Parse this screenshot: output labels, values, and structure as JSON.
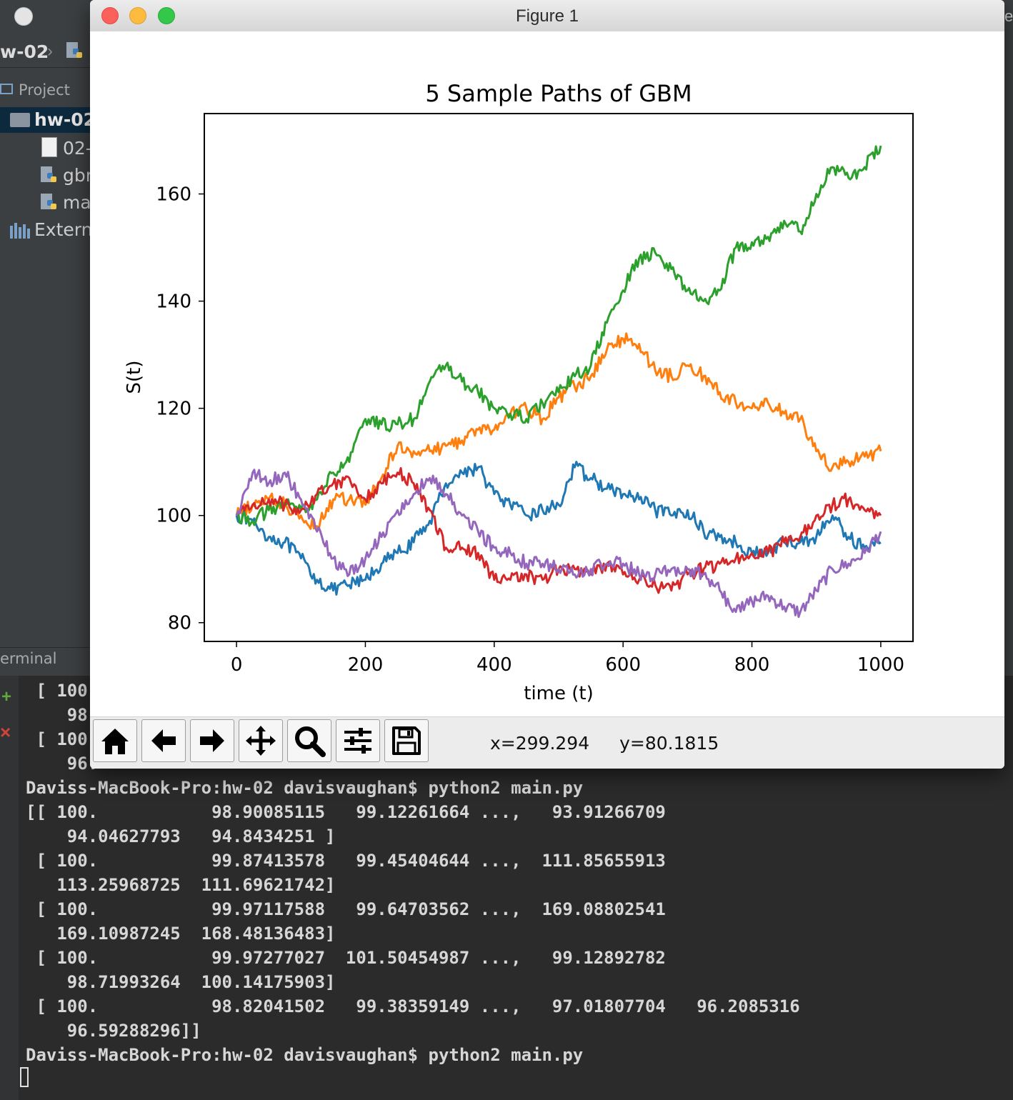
{
  "ide": {
    "breadcrumb": "w-02",
    "project_label": "Project",
    "tree_root": "hw-02",
    "tree_items": [
      "02-",
      "gbr",
      "ma",
      "Extern"
    ],
    "terminal_label": "erminal",
    "edge_char": "e",
    "terminal_lines": [
      " [ 100.",
      "    98.",
      " [ 100.",
      "    96.",
      "Daviss-MacBook-Pro:hw-02 davisvaughan$ python2 main.py",
      "[[ 100.           98.90085115   99.12261664 ...,   93.91266709",
      "    94.04627793   94.8434251 ]",
      " [ 100.           99.87413578   99.45404644 ...,  111.85655913",
      "   113.25968725  111.69621742]",
      " [ 100.           99.97117588   99.64703562 ...,  169.08802541",
      "   169.10987245  168.48136483]",
      " [ 100.           99.97277027  101.50454987 ...,   99.12892782",
      "    98.71993264  100.14175903]",
      " [ 100.           98.82041502   99.38359149 ...,   97.01807704   96.2085316",
      "    96.59288296]]",
      "Daviss-MacBook-Pro:hw-02 davisvaughan$ python2 main.py"
    ]
  },
  "figure": {
    "window_title": "Figure 1",
    "toolbar": {
      "buttons": [
        "home-icon",
        "back-arrow-icon",
        "forward-arrow-icon",
        "pan-icon",
        "zoom-icon",
        "configure-subplots-icon",
        "save-icon"
      ],
      "coord_x": "x=299.294",
      "coord_y": "y=80.1815"
    }
  },
  "chart_data": {
    "type": "line",
    "title": "5 Sample Paths of GBM",
    "xlabel": "time (t)",
    "ylabel": "S(t)",
    "xlim": [
      -50,
      1050
    ],
    "ylim": [
      76.5,
      175
    ],
    "xticks": [
      0,
      200,
      400,
      600,
      800,
      1000
    ],
    "yticks": [
      80,
      100,
      120,
      140,
      160
    ],
    "grid": false,
    "x": [
      0,
      25,
      50,
      75,
      100,
      125,
      150,
      175,
      200,
      225,
      250,
      275,
      300,
      325,
      350,
      375,
      400,
      425,
      450,
      475,
      500,
      525,
      550,
      575,
      600,
      625,
      650,
      675,
      700,
      725,
      750,
      775,
      800,
      825,
      850,
      875,
      900,
      925,
      950,
      975,
      1000
    ],
    "series": [
      {
        "color": "#1f77b4",
        "values": [
          100,
          99,
          96,
          95,
          92,
          88,
          86,
          87,
          88,
          91,
          93,
          95,
          99,
          106,
          108,
          109,
          104,
          102,
          100,
          101,
          102,
          109,
          107,
          105,
          104,
          103,
          101,
          100,
          101,
          97,
          96,
          95,
          93,
          93,
          95,
          95,
          96,
          100,
          96,
          94,
          95
        ]
      },
      {
        "color": "#ff7f0e",
        "values": [
          100,
          102,
          103,
          102,
          100,
          98,
          103,
          103,
          102,
          107,
          113,
          112,
          112,
          113,
          114,
          116,
          116,
          119,
          120,
          118,
          122,
          124,
          126,
          131,
          133,
          132,
          127,
          126,
          128,
          126,
          123,
          121,
          120,
          121,
          119,
          118,
          112,
          109,
          110,
          111,
          112
        ]
      },
      {
        "color": "#2ca02c",
        "values": [
          100,
          99,
          101,
          102,
          101,
          103,
          108,
          110,
          118,
          117,
          117,
          118,
          125,
          128,
          125,
          123,
          120,
          119,
          118,
          121,
          123,
          126,
          128,
          136,
          142,
          148,
          149,
          146,
          142,
          140,
          142,
          150,
          151,
          152,
          155,
          153,
          160,
          165,
          163,
          165,
          169
        ]
      },
      {
        "color": "#d62728",
        "values": [
          100,
          102,
          103,
          102,
          101,
          104,
          106,
          107,
          103,
          106,
          108,
          106,
          101,
          94,
          94,
          93,
          88,
          88,
          89,
          88,
          90,
          90,
          89,
          91,
          89,
          88,
          87,
          86,
          89,
          90,
          91,
          92,
          93,
          93,
          95,
          96,
          100,
          102,
          103,
          101,
          100
        ]
      },
      {
        "color": "#9467bd",
        "values": [
          100,
          108,
          106,
          108,
          103,
          97,
          92,
          89,
          92,
          96,
          101,
          104,
          107,
          104,
          100,
          97,
          94,
          93,
          91,
          91,
          90,
          89,
          90,
          91,
          91,
          89,
          89,
          90,
          90,
          89,
          86,
          82,
          84,
          85,
          83,
          82,
          86,
          90,
          91,
          93,
          97
        ]
      }
    ]
  }
}
